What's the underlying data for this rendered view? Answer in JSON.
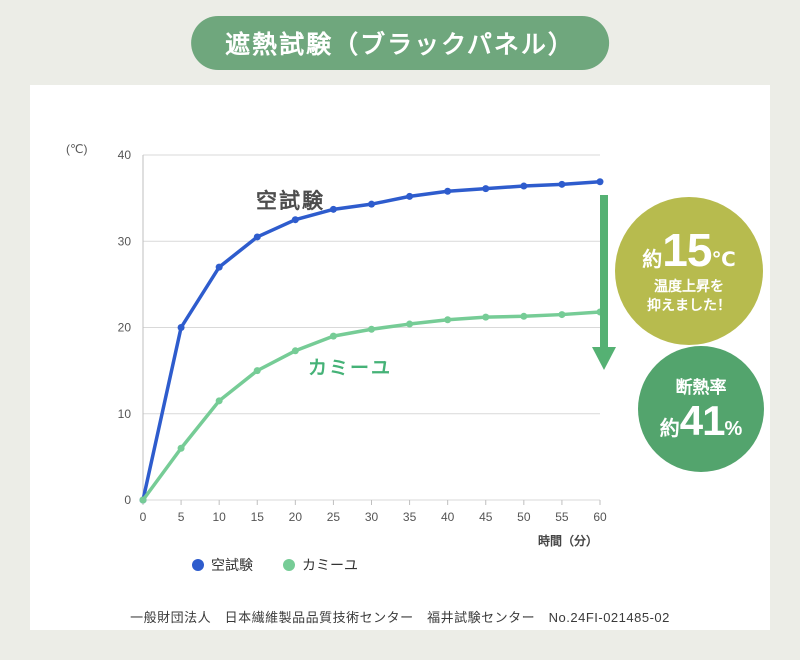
{
  "page": {
    "title": "遮熱試験（ブラックパネル）",
    "footer": "一般財団法人　日本繊維製品品質技術センター　福井試験センター　No.24FI-021485-02"
  },
  "chart_data": {
    "type": "line",
    "x": [
      0,
      5,
      10,
      15,
      20,
      25,
      30,
      35,
      40,
      45,
      50,
      55,
      60
    ],
    "series": [
      {
        "name": "空試験",
        "color": "#2e5ccd",
        "values": [
          0,
          20,
          27,
          30.5,
          32.5,
          33.7,
          34.3,
          35.2,
          35.8,
          36.1,
          36.4,
          36.6,
          36.9
        ]
      },
      {
        "name": "カミーユ",
        "color": "#76cc96",
        "values": [
          0,
          6,
          11.5,
          15,
          17.3,
          19,
          19.8,
          20.4,
          20.9,
          21.2,
          21.3,
          21.5,
          21.8
        ]
      }
    ],
    "title": "遮熱試験（ブラックパネル）",
    "ylabel": "(℃)",
    "xlabel": "時間（分）",
    "ylim": [
      0,
      40
    ],
    "yticks": [
      0,
      10,
      20,
      30,
      40
    ],
    "grid": true,
    "legend_position": "bottom"
  },
  "annotations": {
    "blue_curve_label": "空試験",
    "green_curve_label": "カミーユ",
    "temperature_badge": {
      "prefix": "約",
      "value": "15",
      "unit": "℃",
      "line1": "温度上昇を",
      "line2": "抑えました！"
    },
    "insulation_badge": {
      "title": "断熱率",
      "prefix": "約",
      "value": "41",
      "unit": "%"
    }
  },
  "colors": {
    "header_bg": "#6fa77d",
    "blue_line": "#2e5ccd",
    "green_line": "#76cc96",
    "badge_olive": "#b7bb4e",
    "badge_green": "#53a46d",
    "arrow": "#55b173",
    "grid": "#d9d9d9",
    "axis": "#bfbfbf"
  }
}
